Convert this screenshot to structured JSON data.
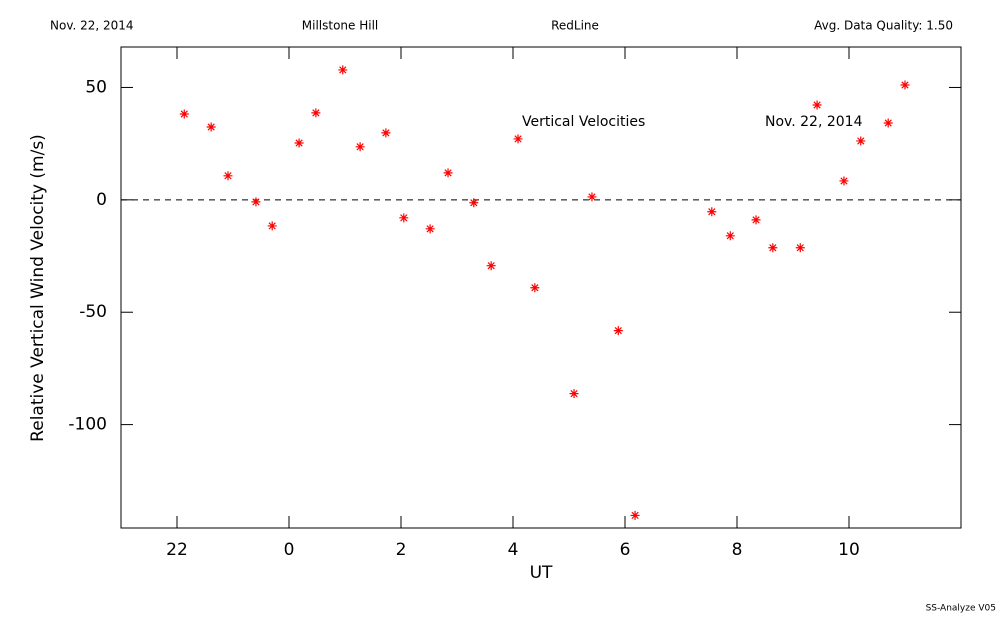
{
  "chart_data": {
    "type": "scatter",
    "header": [
      "Nov. 22, 2014",
      "Millstone Hill",
      "RedLine",
      "Avg. Data Quality: 1.50"
    ],
    "annotations": [
      "Vertical Velocities",
      "Nov. 22, 2014"
    ],
    "ylabel": "Relative Vertical Wind Velocity (m/s)",
    "xlabel": "UT",
    "footer": "SS-Analyze V05",
    "color": "#ff0000",
    "reference_line": 0,
    "xlim": [
      21,
      36
    ],
    "ylim": [
      -146,
      68
    ],
    "xticks": [
      22,
      {
        "value": 24,
        "label": "0"
      },
      {
        "value": 26,
        "label": "2"
      },
      {
        "value": 28,
        "label": "4"
      },
      {
        "value": 30,
        "label": "6"
      },
      {
        "value": 32,
        "label": "8"
      },
      {
        "value": 34,
        "label": "10"
      }
    ],
    "yticks": [
      50,
      0,
      -50,
      -100
    ],
    "x": [
      22.13,
      22.61,
      22.91,
      23.41,
      23.7,
      24.18,
      24.48,
      24.96,
      25.27,
      25.73,
      26.05,
      26.52,
      26.84,
      27.3,
      27.61,
      28.09,
      28.39,
      29.09,
      29.41,
      29.88,
      30.18,
      31.55,
      31.88,
      32.34,
      32.64,
      33.13,
      33.43,
      33.91,
      34.21,
      34.7,
      35.0
    ],
    "values": [
      38.2,
      32.4,
      10.7,
      -0.9,
      -11.6,
      25.3,
      38.7,
      57.8,
      23.6,
      29.8,
      -8,
      -12.9,
      12,
      -1.3,
      -29.3,
      27.1,
      -39.1,
      -86.2,
      1.3,
      -58.2,
      -140.4,
      -5.3,
      -16,
      -8.9,
      -21.3,
      -21.3,
      42.2,
      8.4,
      26.2,
      34.2,
      51.1
    ]
  }
}
